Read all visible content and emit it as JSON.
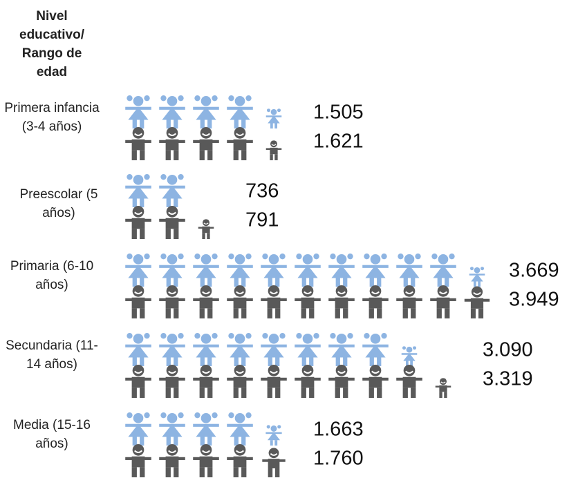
{
  "chart_data": {
    "type": "pictogram",
    "category_axis_label": "Nivel educativo/ Rango de edad",
    "categories": [
      "Primera infancia (3-4 años)",
      "Preescolar (5 años)",
      "Primaria (6-10 años)",
      "Secundaria (11-14 años)",
      "Media (15-16 años)"
    ],
    "series": [
      {
        "color": "#8db4e2",
        "values": [
          1505,
          736,
          3669,
          3090,
          1663
        ],
        "value_labels": [
          "1.505",
          "736",
          "3.669",
          "3.090",
          "1.663"
        ]
      },
      {
        "color": "#595959",
        "values": [
          1621,
          791,
          3949,
          3319,
          1760
        ],
        "value_labels": [
          "1.621",
          "791",
          "3.949",
          "3.319",
          "1.760"
        ]
      }
    ]
  }
}
